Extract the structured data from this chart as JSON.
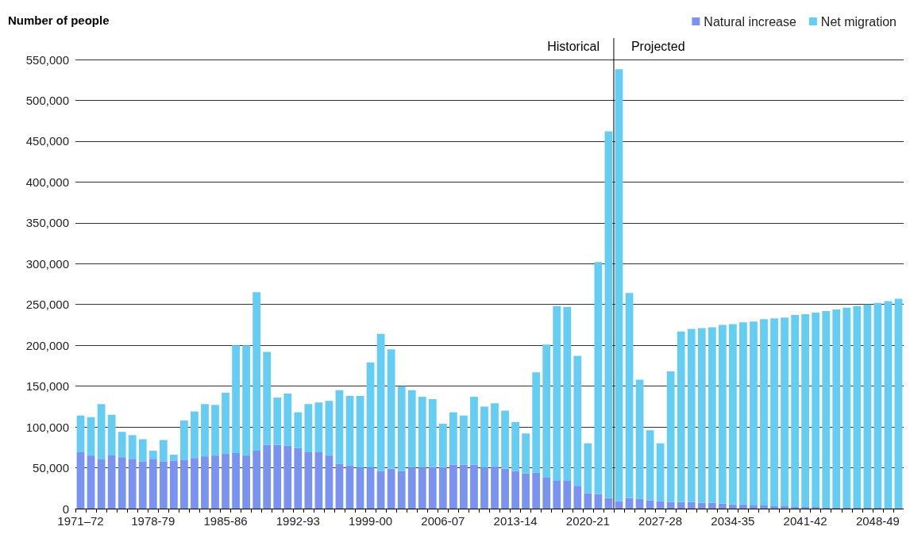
{
  "chart_data": {
    "type": "bar",
    "stacked": true,
    "ylabel": "Number of people",
    "categories": [
      "1971–72",
      null,
      null,
      null,
      null,
      null,
      null,
      "1978-79",
      null,
      null,
      null,
      null,
      null,
      null,
      "1985-86",
      null,
      null,
      null,
      null,
      null,
      null,
      "1992-93",
      null,
      null,
      null,
      null,
      null,
      null,
      "1999-00",
      null,
      null,
      null,
      null,
      null,
      null,
      "2006-07",
      null,
      null,
      null,
      null,
      null,
      null,
      "2013-14",
      null,
      null,
      null,
      null,
      null,
      null,
      "2020-21",
      null,
      null,
      null,
      null,
      null,
      null,
      "2027-28",
      null,
      null,
      null,
      null,
      null,
      null,
      "2034-35",
      null,
      null,
      null,
      null,
      null,
      null,
      "2041-42",
      null,
      null,
      null,
      null,
      null,
      null,
      "2048-49",
      null,
      null
    ],
    "series": [
      {
        "name": "Natural increase",
        "color": "#7b93f0",
        "values": [
          69000,
          65000,
          61000,
          65000,
          63000,
          61000,
          58000,
          61000,
          58000,
          59000,
          60000,
          62000,
          64000,
          65000,
          67000,
          68000,
          65000,
          71000,
          78000,
          78000,
          77000,
          74000,
          69000,
          69000,
          65000,
          55000,
          53000,
          50000,
          50000,
          46000,
          49000,
          46000,
          50000,
          50000,
          51000,
          51000,
          54000,
          54000,
          54000,
          50000,
          52000,
          49000,
          46000,
          43000,
          44000,
          38000,
          34000,
          34000,
          28000,
          19000,
          18000,
          13000,
          9000,
          13000,
          12000,
          10000,
          9000,
          8000,
          8000,
          8000,
          7000,
          7000,
          6000,
          5000,
          5000,
          4000,
          4000,
          3000,
          3000,
          2000,
          2000,
          2000,
          1000,
          1000,
          1000,
          1000,
          1000,
          1000,
          0,
          0
        ]
      },
      {
        "name": "Net migration",
        "color": "#66cdf2",
        "values": [
          45000,
          47000,
          67000,
          50000,
          31000,
          29000,
          27000,
          10000,
          26000,
          7000,
          48000,
          57000,
          64000,
          62000,
          75000,
          132000,
          135000,
          194000,
          114000,
          58000,
          64000,
          44000,
          59000,
          61000,
          67000,
          90000,
          85000,
          88000,
          129000,
          168000,
          146000,
          104000,
          95000,
          87000,
          83000,
          53000,
          64000,
          60000,
          83000,
          75000,
          77000,
          71000,
          60000,
          49000,
          123000,
          163000,
          214000,
          213000,
          159000,
          61000,
          284000,
          449000,
          529000,
          251000,
          146000,
          86000,
          71000,
          160000,
          209000,
          212000,
          214000,
          215000,
          219000,
          221000,
          223000,
          225000,
          228000,
          230000,
          231000,
          235000,
          236000,
          238000,
          241000,
          243000,
          245000,
          247000,
          249000,
          251000,
          254000,
          257000
        ]
      }
    ],
    "ylim": [
      0,
      550000
    ],
    "yticks": [
      0,
      {
        "value": 50000,
        "label": "50,000"
      },
      {
        "value": 100000,
        "label": "100,000"
      },
      {
        "value": 150000,
        "label": "150,000"
      },
      {
        "value": 200000,
        "label": "200,000"
      },
      {
        "value": 250000,
        "label": "250,000"
      },
      {
        "value": 300000,
        "label": "300,000"
      },
      {
        "value": 350000,
        "label": "350,000"
      },
      {
        "value": 400000,
        "label": "400,000"
      },
      {
        "value": 450000,
        "label": "450,000"
      },
      {
        "value": 500000,
        "label": "500,000"
      },
      {
        "value": 550000,
        "label": "550,000"
      }
    ],
    "grid": "y",
    "legend": "top right",
    "annotations": [
      "Historical",
      "Projected"
    ]
  }
}
